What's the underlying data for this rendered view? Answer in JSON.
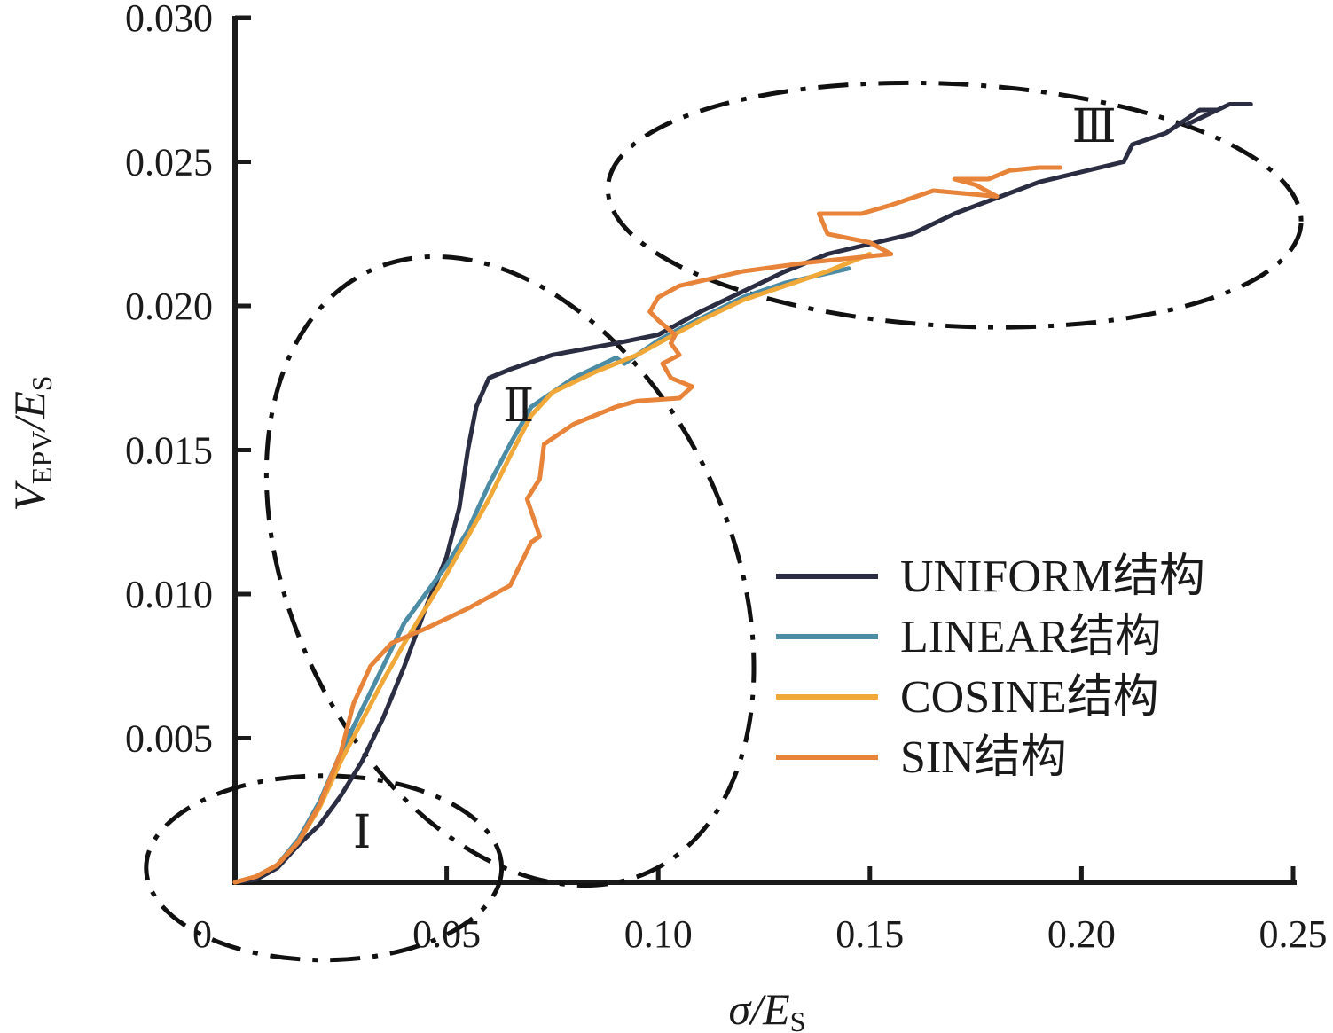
{
  "chart_data": {
    "type": "line",
    "xlabel": {
      "main": "σ/E",
      "sub": "S"
    },
    "ylabel": {
      "main": "V",
      "sub1": "EPV",
      "mid": "/E",
      "sub2": "S"
    },
    "xlim": [
      0,
      0.25
    ],
    "ylim": [
      0,
      0.03
    ],
    "x_ticks": [
      {
        "value": 0,
        "label": "0"
      },
      {
        "value": 0.05,
        "label": "0.05"
      },
      {
        "value": 0.1,
        "label": "0.10"
      },
      {
        "value": 0.15,
        "label": "0.15"
      },
      {
        "value": 0.2,
        "label": "0.20"
      },
      {
        "value": 0.25,
        "label": "0.25"
      }
    ],
    "y_ticks": [
      {
        "value": 0.005,
        "label": "0.005"
      },
      {
        "value": 0.01,
        "label": "0.010"
      },
      {
        "value": 0.015,
        "label": "0.015"
      },
      {
        "value": 0.02,
        "label": "0.020"
      },
      {
        "value": 0.025,
        "label": "0.025"
      },
      {
        "value": 0.03,
        "label": "0.030"
      }
    ],
    "grid": false,
    "legend_position": "bottom-right",
    "series": [
      {
        "name": "UNIFORM结构",
        "color": "#2b2d42",
        "points": [
          [
            0,
            0
          ],
          [
            0.005,
            0.0001
          ],
          [
            0.01,
            0.0005
          ],
          [
            0.015,
            0.0013
          ],
          [
            0.02,
            0.002
          ],
          [
            0.025,
            0.003
          ],
          [
            0.03,
            0.0042
          ],
          [
            0.035,
            0.0057
          ],
          [
            0.04,
            0.0075
          ],
          [
            0.045,
            0.0095
          ],
          [
            0.05,
            0.0113
          ],
          [
            0.053,
            0.013
          ],
          [
            0.055,
            0.015
          ],
          [
            0.057,
            0.0165
          ],
          [
            0.06,
            0.0175
          ],
          [
            0.065,
            0.0178
          ],
          [
            0.075,
            0.0183
          ],
          [
            0.09,
            0.0187
          ],
          [
            0.1,
            0.019
          ],
          [
            0.11,
            0.0198
          ],
          [
            0.13,
            0.0212
          ],
          [
            0.14,
            0.0218
          ],
          [
            0.16,
            0.0225
          ],
          [
            0.17,
            0.0232
          ],
          [
            0.19,
            0.0243
          ],
          [
            0.21,
            0.025
          ],
          [
            0.212,
            0.0256
          ],
          [
            0.22,
            0.026
          ],
          [
            0.228,
            0.0268
          ],
          [
            0.232,
            0.0268
          ],
          [
            0.225,
            0.0263
          ],
          [
            0.235,
            0.027
          ],
          [
            0.24,
            0.027
          ]
        ]
      },
      {
        "name": "LINEAR结构",
        "color": "#4c8ca5",
        "points": [
          [
            0,
            0
          ],
          [
            0.005,
            0.0002
          ],
          [
            0.01,
            0.0006
          ],
          [
            0.015,
            0.0015
          ],
          [
            0.02,
            0.0028
          ],
          [
            0.025,
            0.0045
          ],
          [
            0.03,
            0.006
          ],
          [
            0.035,
            0.0075
          ],
          [
            0.04,
            0.009
          ],
          [
            0.045,
            0.01
          ],
          [
            0.05,
            0.011
          ],
          [
            0.055,
            0.0122
          ],
          [
            0.06,
            0.0138
          ],
          [
            0.065,
            0.0152
          ],
          [
            0.07,
            0.0165
          ],
          [
            0.08,
            0.0175
          ],
          [
            0.09,
            0.0182
          ],
          [
            0.092,
            0.018
          ],
          [
            0.1,
            0.0188
          ],
          [
            0.105,
            0.0192
          ],
          [
            0.12,
            0.0203
          ],
          [
            0.13,
            0.0208
          ],
          [
            0.145,
            0.0213
          ]
        ]
      },
      {
        "name": "COSINE结构",
        "color": "#f0a838",
        "points": [
          [
            0,
            0
          ],
          [
            0.005,
            0.0002
          ],
          [
            0.01,
            0.0006
          ],
          [
            0.015,
            0.0014
          ],
          [
            0.02,
            0.0026
          ],
          [
            0.025,
            0.0042
          ],
          [
            0.03,
            0.0056
          ],
          [
            0.035,
            0.007
          ],
          [
            0.04,
            0.0083
          ],
          [
            0.045,
            0.0095
          ],
          [
            0.05,
            0.0107
          ],
          [
            0.055,
            0.012
          ],
          [
            0.06,
            0.0133
          ],
          [
            0.065,
            0.0148
          ],
          [
            0.07,
            0.0162
          ],
          [
            0.075,
            0.017
          ],
          [
            0.085,
            0.0177
          ],
          [
            0.095,
            0.0183
          ],
          [
            0.1,
            0.0187
          ],
          [
            0.11,
            0.0195
          ],
          [
            0.12,
            0.0202
          ],
          [
            0.13,
            0.0207
          ],
          [
            0.14,
            0.0212
          ],
          [
            0.15,
            0.0218
          ]
        ]
      },
      {
        "name": "SIN结构",
        "color": "#e8833a",
        "points": [
          [
            0,
            0
          ],
          [
            0.005,
            0.0002
          ],
          [
            0.01,
            0.0006
          ],
          [
            0.015,
            0.0014
          ],
          [
            0.02,
            0.0027
          ],
          [
            0.025,
            0.0045
          ],
          [
            0.028,
            0.0062
          ],
          [
            0.032,
            0.0075
          ],
          [
            0.037,
            0.0083
          ],
          [
            0.045,
            0.0088
          ],
          [
            0.055,
            0.0095
          ],
          [
            0.065,
            0.0103
          ],
          [
            0.07,
            0.0118
          ],
          [
            0.072,
            0.012
          ],
          [
            0.069,
            0.0133
          ],
          [
            0.072,
            0.014
          ],
          [
            0.073,
            0.0152
          ],
          [
            0.08,
            0.0159
          ],
          [
            0.09,
            0.0165
          ],
          [
            0.095,
            0.0167
          ],
          [
            0.105,
            0.0168
          ],
          [
            0.108,
            0.0172
          ],
          [
            0.103,
            0.0175
          ],
          [
            0.101,
            0.018
          ],
          [
            0.105,
            0.0183
          ],
          [
            0.103,
            0.0187
          ],
          [
            0.104,
            0.019
          ],
          [
            0.1,
            0.0195
          ],
          [
            0.098,
            0.0198
          ],
          [
            0.1,
            0.0203
          ],
          [
            0.105,
            0.0207
          ],
          [
            0.12,
            0.0212
          ],
          [
            0.135,
            0.0215
          ],
          [
            0.155,
            0.0218
          ],
          [
            0.15,
            0.0222
          ],
          [
            0.14,
            0.0225
          ],
          [
            0.138,
            0.0232
          ],
          [
            0.148,
            0.0232
          ],
          [
            0.155,
            0.0235
          ],
          [
            0.165,
            0.024
          ],
          [
            0.18,
            0.0238
          ],
          [
            0.175,
            0.0242
          ],
          [
            0.17,
            0.0244
          ],
          [
            0.178,
            0.0244
          ],
          [
            0.183,
            0.0247
          ],
          [
            0.19,
            0.0248
          ],
          [
            0.195,
            0.0248
          ]
        ]
      }
    ],
    "region_annotations": [
      {
        "label": "Ⅰ",
        "x": 0.03,
        "y": 0.0012
      },
      {
        "label": "Ⅱ",
        "x": 0.067,
        "y": 0.016
      },
      {
        "label": "Ⅲ",
        "x": 0.203,
        "y": 0.0257
      }
    ],
    "region_ellipses": [
      {
        "name": "region-i-ellipse",
        "cx": 0.021,
        "cy": 0.0005,
        "rx": 0.042,
        "ry": 0.0032,
        "angle": 0
      },
      {
        "name": "region-ii-ellipse",
        "cx": 0.065,
        "cy": 0.0108,
        "rx": 0.052,
        "ry": 0.0115,
        "angle": -25
      },
      {
        "name": "region-iii-ellipse",
        "cx": 0.17,
        "cy": 0.0235,
        "rx": 0.082,
        "ry": 0.0042,
        "angle": 3
      }
    ]
  }
}
